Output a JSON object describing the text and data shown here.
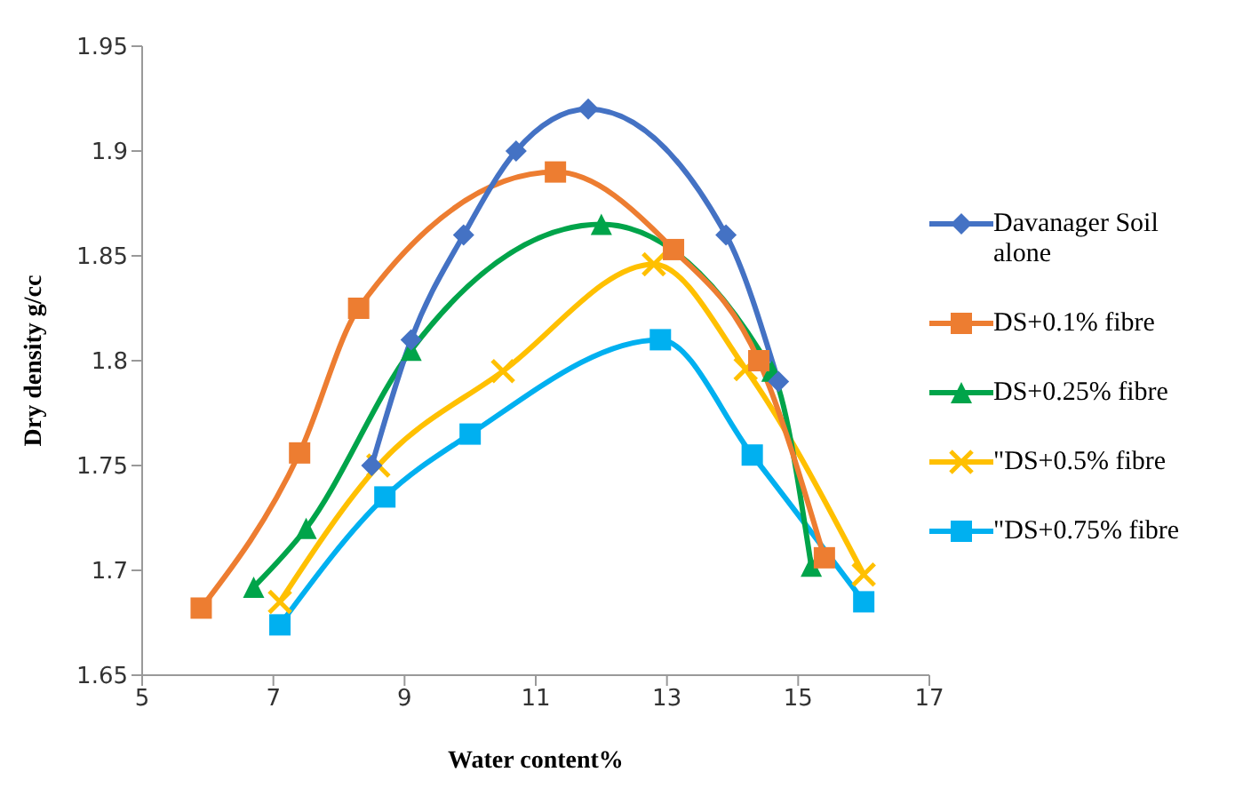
{
  "chart_data": {
    "type": "line",
    "xlabel": "Water content%",
    "ylabel": "Dry  density g/cc",
    "xlim": [
      5,
      17
    ],
    "xticks": [
      5,
      7,
      9,
      11,
      13,
      15,
      17
    ],
    "ylim": [
      1.65,
      1.95
    ],
    "yticks": [
      1.65,
      1.7,
      1.75,
      1.8,
      1.85,
      1.9,
      1.95
    ],
    "grid": false,
    "legend": "right",
    "series": [
      {
        "name": "Davanager Soil alone",
        "color": "#4472c4",
        "marker": "diamond",
        "x": [
          8.5,
          9.1,
          9.9,
          10.7,
          11.8,
          13.9,
          14.7
        ],
        "values": [
          1.75,
          1.81,
          1.86,
          1.9,
          1.92,
          1.86,
          1.79
        ]
      },
      {
        "name": "DS+0.1% fibre",
        "color": "#ed7d31",
        "marker": "square",
        "x": [
          5.9,
          7.4,
          8.3,
          11.3,
          13.1,
          14.4,
          15.4
        ],
        "values": [
          1.682,
          1.756,
          1.825,
          1.89,
          1.853,
          1.8,
          1.706
        ]
      },
      {
        "name": "DS+0.25% fibre",
        "color": "#00a44a",
        "marker": "triangle",
        "x": [
          6.7,
          7.5,
          9.1,
          12.0,
          14.6,
          15.2
        ],
        "values": [
          1.692,
          1.72,
          1.805,
          1.865,
          1.795,
          1.702
        ]
      },
      {
        "name": "\"DS+0.5% fibre",
        "color": "#ffc000",
        "marker": "cross",
        "x": [
          7.1,
          8.6,
          10.5,
          12.8,
          14.2,
          16.0
        ],
        "values": [
          1.685,
          1.75,
          1.795,
          1.846,
          1.796,
          1.698
        ]
      },
      {
        "name": "\"DS+0.75% fibre",
        "color": "#00b0f0",
        "marker": "square",
        "x": [
          7.1,
          8.7,
          10.0,
          12.9,
          14.3,
          16.0
        ],
        "values": [
          1.674,
          1.735,
          1.765,
          1.81,
          1.755,
          1.685
        ]
      }
    ]
  }
}
